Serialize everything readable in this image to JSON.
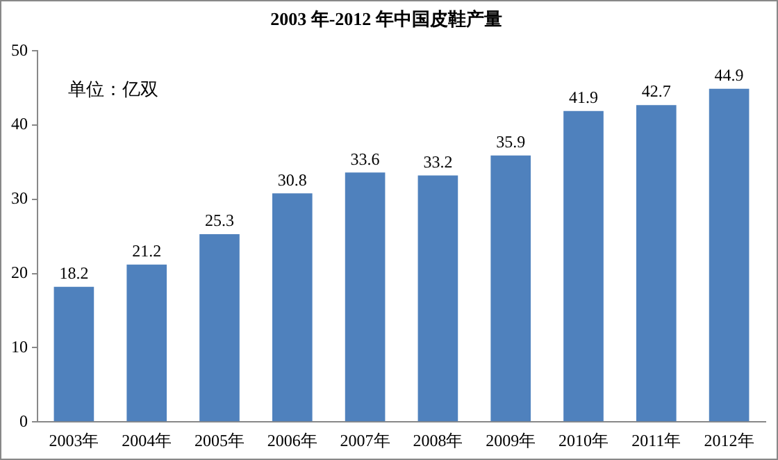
{
  "chart_data": {
    "type": "bar",
    "title": "2003 年-2012 年中国皮鞋产量",
    "categories": [
      "2003年",
      "2004年",
      "2005年",
      "2006年",
      "2007年",
      "2008年",
      "2009年",
      "2010年",
      "2011年",
      "2012年"
    ],
    "values": [
      18.2,
      21.2,
      25.3,
      30.8,
      33.6,
      33.2,
      35.9,
      41.9,
      42.7,
      44.9
    ],
    "color": "#4f81bd",
    "ylim": [
      0,
      50
    ],
    "yticks": [
      0,
      10,
      20,
      30,
      40,
      50
    ],
    "grid": false,
    "legend": false,
    "data_labels": true,
    "annotations": [
      "单位：亿双"
    ]
  }
}
